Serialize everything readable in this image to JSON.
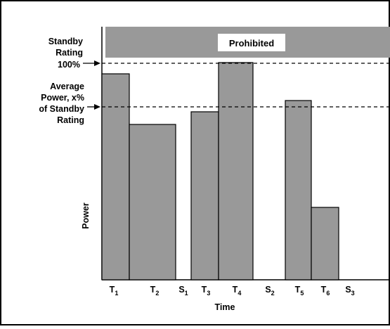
{
  "diagram": {
    "prohibited_label": "Prohibited",
    "standby_label": [
      "Standby",
      "Rating",
      "100%"
    ],
    "average_label": [
      "Average",
      "Power, x%",
      "of Standby",
      "Rating"
    ],
    "y_axis_label": "Power",
    "x_axis_label": "Time",
    "ticks": [
      {
        "base": "T",
        "sub": "1"
      },
      {
        "base": "T",
        "sub": "2"
      },
      {
        "base": "S",
        "sub": "1"
      },
      {
        "base": "T",
        "sub": "3"
      },
      {
        "base": "T",
        "sub": "4"
      },
      {
        "base": "S",
        "sub": "2"
      },
      {
        "base": "T",
        "sub": "5"
      },
      {
        "base": "T",
        "sub": "6"
      },
      {
        "base": "S",
        "sub": "3"
      }
    ],
    "colors": {
      "bar_fill": "#999999",
      "band_fill": "#999999",
      "stroke": "#000000",
      "background": "#ffffff"
    }
  }
}
